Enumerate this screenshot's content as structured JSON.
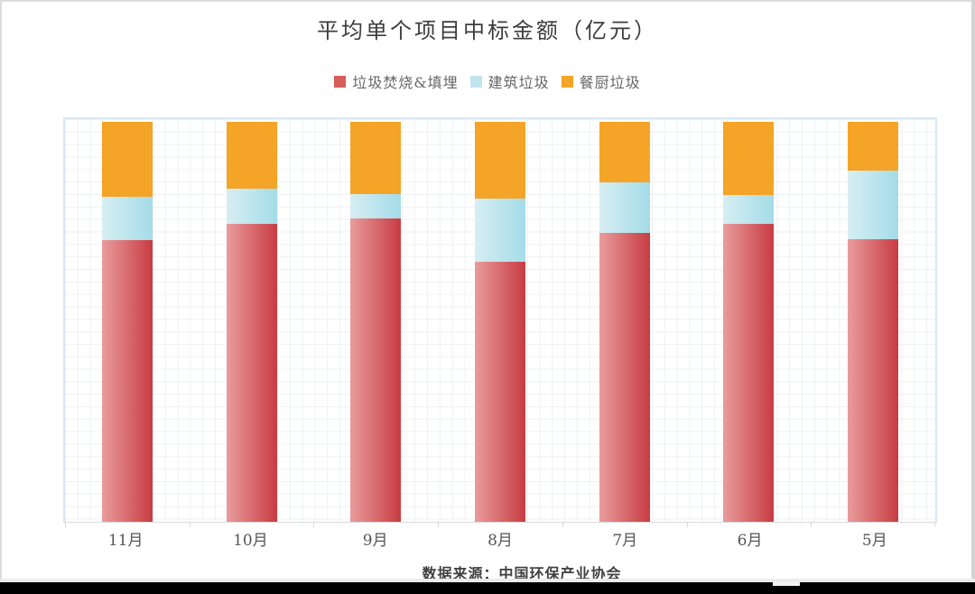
{
  "chart_data": {
    "type": "bar",
    "stacked": true,
    "percent_stacked": true,
    "title": "平均单个项目中标金额（亿元）",
    "categories": [
      "11月",
      "10月",
      "9月",
      "8月",
      "7月",
      "6月",
      "5月"
    ],
    "series": [
      {
        "name": "垃圾焚烧&填埋",
        "values": [
          70.4,
          74.4,
          75.8,
          65.0,
          72.2,
          74.4,
          70.6
        ],
        "color_start": "#E99C9D",
        "color_end": "#C73C42",
        "legend_color": "#D75D59"
      },
      {
        "name": "建筑垃圾",
        "values": [
          10.8,
          9.0,
          6.1,
          15.9,
          12.6,
          7.4,
          17.3
        ],
        "color_start": "#D7EEF3",
        "color_end": "#A4DCE8",
        "legend_color": "#C0E4EE"
      },
      {
        "name": "餐厨垃圾",
        "values": [
          18.8,
          16.6,
          18.1,
          19.1,
          15.2,
          18.2,
          12.1
        ],
        "color_start": "#F4A427",
        "color_end": "#F4A427",
        "legend_color": "#F4A426"
      }
    ],
    "ylim": [
      0,
      100
    ],
    "unit": "%",
    "grid": true,
    "legend_position": "top",
    "xlabel": "",
    "ylabel": ""
  },
  "footer": {
    "source": "数据来源：中国环保产业协会"
  },
  "colors": {
    "plot_border": "#d9e7f3",
    "grid_line": "#eef1f4",
    "axis_line": "#d9d9d9",
    "title_text": "#3d3d3d",
    "legend_text": "#666666",
    "xlabel_text": "#555555",
    "footer_text": "#3f3f3f",
    "scrollbar": "#d3d3d3",
    "bottom_bar": "#000000"
  }
}
